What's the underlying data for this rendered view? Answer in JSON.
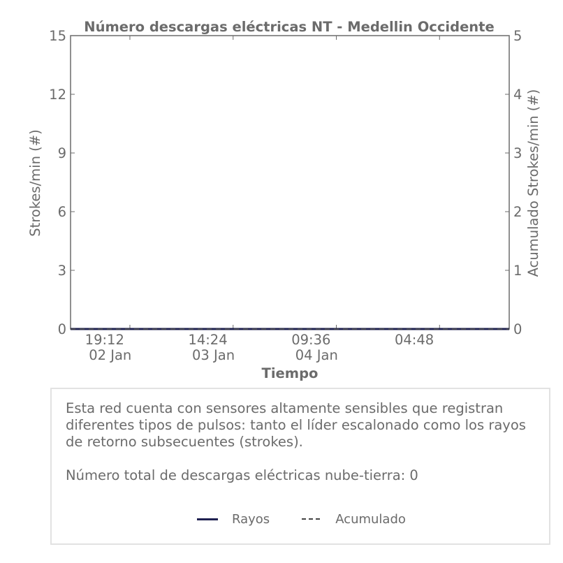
{
  "chart_data": {
    "type": "line",
    "title": "Número descargas eléctricas NT - Medellin Occidente",
    "xlabel": "Tiempo",
    "ylabel_left": "Strokes/min (#)",
    "ylabel_right": "Acumulado Strokes/min (#)",
    "ylim_left": [
      0,
      15
    ],
    "ylim_right": [
      0,
      5
    ],
    "yticks_left": [
      "0",
      "3",
      "6",
      "9",
      "12",
      "15"
    ],
    "yticks_right": [
      "0",
      "1",
      "2",
      "3",
      "4",
      "5"
    ],
    "xticks": [
      {
        "time": "19:12",
        "date": "02 Jan"
      },
      {
        "time": "14:24",
        "date": "03 Jan"
      },
      {
        "time": "09:36",
        "date": "04 Jan"
      },
      {
        "time": "04:48",
        "date": ""
      }
    ],
    "series": [
      {
        "name": "Rayos",
        "color": "#1f2150",
        "style": "solid",
        "axis": "left",
        "values": [
          0,
          0,
          0,
          0,
          0
        ]
      },
      {
        "name": "Acumulado",
        "color": "#444444",
        "style": "dashed",
        "axis": "right",
        "values": [
          0,
          0,
          0,
          0,
          0
        ]
      }
    ],
    "grid": false,
    "legend": "bottom-center"
  },
  "info": {
    "description": "Esta red cuenta con sensores altamente sensibles que registran diferentes tipos de pulsos: tanto el líder escalonado como los rayos de retorno subsecuentes (strokes).",
    "total": "Número total de descargas eléctricas nube-tierra: 0"
  }
}
